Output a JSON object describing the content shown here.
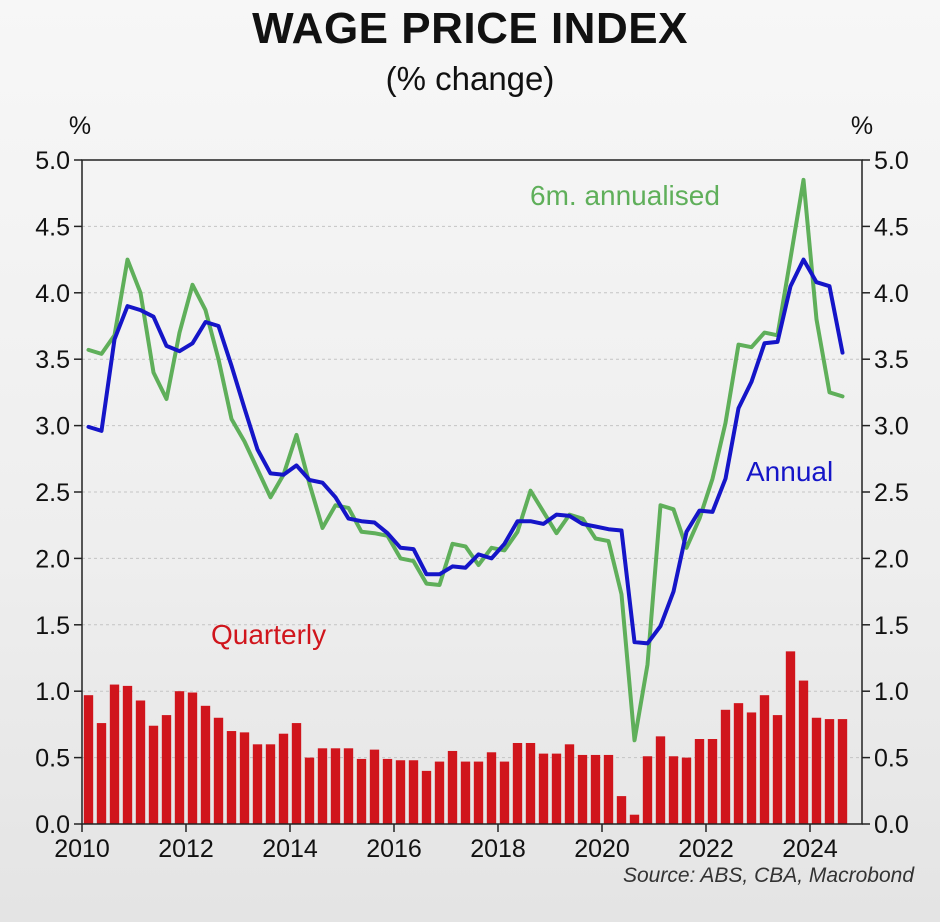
{
  "header": {
    "title": "WAGE PRICE INDEX",
    "subtitle": "(% change)",
    "source": "Source: ABS, CBA, Macrobond"
  },
  "chart_data": {
    "type": "line",
    "title": "WAGE PRICE INDEX",
    "subtitle": "(% change)",
    "y_unit_left": "%",
    "y_unit_right": "%",
    "xlim": [
      2010.0,
      2025.0
    ],
    "ylim": [
      0,
      5.0
    ],
    "x_ticks": [
      "2010",
      "2012",
      "2014",
      "2016",
      "2018",
      "2020",
      "2022",
      "2024"
    ],
    "y_ticks": [
      "0.0",
      "0.5",
      "1.0",
      "1.5",
      "2.0",
      "2.5",
      "3.0",
      "3.5",
      "4.0",
      "4.5",
      "5.0"
    ],
    "grid": true,
    "colors": {
      "annual": "#1515c8",
      "annualised": "#5faf5a",
      "quarterly": "#d0151c"
    },
    "annotations": {
      "annualised": "6m. annualised",
      "annual": "Annual",
      "quarterly": "Quarterly"
    },
    "quarters": [
      2010.0,
      2010.25,
      2010.5,
      2010.75,
      2011.0,
      2011.25,
      2011.5,
      2011.75,
      2012.0,
      2012.25,
      2012.5,
      2012.75,
      2013.0,
      2013.25,
      2013.5,
      2013.75,
      2014.0,
      2014.25,
      2014.5,
      2014.75,
      2015.0,
      2015.25,
      2015.5,
      2015.75,
      2016.0,
      2016.25,
      2016.5,
      2016.75,
      2017.0,
      2017.25,
      2017.5,
      2017.75,
      2018.0,
      2018.25,
      2018.5,
      2018.75,
      2019.0,
      2019.25,
      2019.5,
      2019.75,
      2020.0,
      2020.25,
      2020.5,
      2020.75,
      2021.0,
      2021.25,
      2021.5,
      2021.75,
      2022.0,
      2022.25,
      2022.5,
      2022.75,
      2023.0,
      2023.25,
      2023.5,
      2023.75,
      2024.0,
      2024.25,
      2024.5
    ],
    "series": [
      {
        "key": "annual",
        "type": "line",
        "values": [
          2.99,
          2.96,
          3.65,
          3.9,
          3.87,
          3.82,
          3.6,
          3.56,
          3.62,
          3.78,
          3.75,
          3.45,
          3.13,
          2.82,
          2.64,
          2.63,
          2.7,
          2.59,
          2.57,
          2.46,
          2.3,
          2.28,
          2.27,
          2.19,
          2.08,
          2.07,
          1.88,
          1.88,
          1.94,
          1.93,
          2.03,
          2.0,
          2.11,
          2.28,
          2.28,
          2.26,
          2.33,
          2.32,
          2.26,
          2.24,
          2.22,
          2.21,
          1.37,
          1.36,
          1.49,
          1.75,
          2.2,
          2.36,
          2.35,
          2.6,
          3.13,
          3.33,
          3.62,
          3.63,
          4.05,
          4.25,
          4.08,
          4.05,
          3.55
        ]
      },
      {
        "key": "annualised",
        "type": "line",
        "values": [
          3.57,
          3.54,
          3.68,
          4.25,
          4.0,
          3.4,
          3.2,
          3.7,
          4.06,
          3.87,
          3.5,
          3.05,
          2.88,
          2.67,
          2.46,
          2.63,
          2.93,
          2.56,
          2.23,
          2.4,
          2.38,
          2.2,
          2.19,
          2.17,
          2.0,
          1.98,
          1.81,
          1.8,
          2.11,
          2.09,
          1.95,
          2.08,
          2.06,
          2.2,
          2.51,
          2.35,
          2.19,
          2.33,
          2.3,
          2.15,
          2.13,
          1.73,
          0.63,
          1.2,
          2.4,
          2.37,
          2.08,
          2.3,
          2.6,
          3.02,
          3.61,
          3.59,
          3.7,
          3.68,
          4.26,
          4.85,
          3.8,
          3.25,
          3.22
        ]
      },
      {
        "key": "quarterly",
        "type": "bar",
        "values": [
          0.97,
          0.76,
          1.05,
          1.04,
          0.93,
          0.74,
          0.82,
          1.0,
          0.99,
          0.89,
          0.8,
          0.7,
          0.69,
          0.6,
          0.6,
          0.68,
          0.76,
          0.5,
          0.57,
          0.57,
          0.57,
          0.49,
          0.56,
          0.49,
          0.48,
          0.48,
          0.4,
          0.47,
          0.55,
          0.47,
          0.47,
          0.54,
          0.47,
          0.61,
          0.61,
          0.53,
          0.53,
          0.6,
          0.52,
          0.52,
          0.52,
          0.21,
          0.07,
          0.51,
          0.66,
          0.51,
          0.5,
          0.64,
          0.64,
          0.86,
          0.91,
          0.84,
          0.97,
          0.82,
          1.3,
          1.08,
          0.8,
          0.79,
          0.79
        ]
      }
    ]
  }
}
